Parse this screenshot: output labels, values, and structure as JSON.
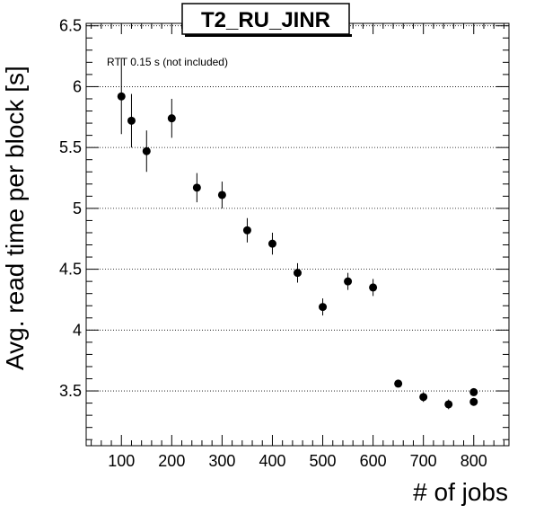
{
  "chart_data": {
    "type": "scatter",
    "title": "T2_RU_JINR",
    "annotation": "RTT 0.15 s (not included)",
    "xlabel": "# of jobs",
    "ylabel": "Avg. read time per block [s]",
    "xlim": [
      30,
      870
    ],
    "ylim": [
      3.05,
      6.52
    ],
    "xticks": [
      100,
      200,
      300,
      400,
      500,
      600,
      700,
      800
    ],
    "yticks": [
      3.5,
      4,
      4.5,
      5,
      5.5,
      6,
      6.5
    ],
    "grid": "horizontal-dotted",
    "series": [
      {
        "x": [
          100,
          120,
          150,
          200,
          250,
          300,
          350,
          400,
          450,
          500,
          550,
          600,
          650,
          700,
          750,
          800,
          800
        ],
        "y": [
          5.92,
          5.72,
          5.47,
          5.74,
          5.17,
          5.11,
          4.82,
          4.71,
          4.47,
          4.19,
          4.4,
          4.35,
          3.56,
          3.45,
          3.39,
          3.49,
          3.41
        ],
        "err": [
          0.31,
          0.22,
          0.17,
          0.16,
          0.12,
          0.11,
          0.1,
          0.09,
          0.08,
          0.07,
          0.07,
          0.07,
          0.03,
          0.04,
          0.04,
          0.03,
          0.03
        ]
      }
    ],
    "color": "#000000"
  }
}
